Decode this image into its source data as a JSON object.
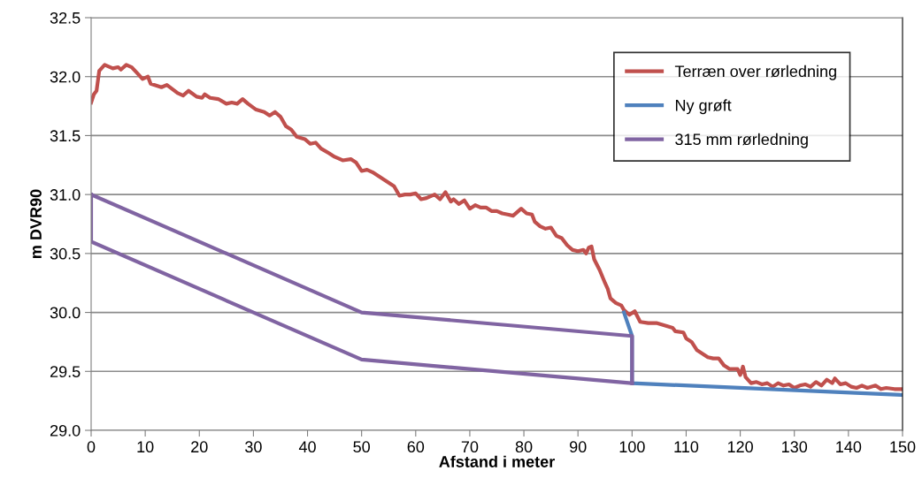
{
  "chart_data": {
    "type": "line",
    "xlabel": "Afstand i meter",
    "ylabel": "m DVR90",
    "xlim": [
      0,
      150
    ],
    "xticks": [
      0,
      10,
      20,
      30,
      40,
      50,
      60,
      70,
      80,
      90,
      100,
      110,
      120,
      130,
      140,
      150
    ],
    "ylim": [
      29.0,
      32.5
    ],
    "yticks": [
      {
        "value": 29.0,
        "label": "29.0"
      },
      {
        "value": 29.5,
        "label": "29.5"
      },
      {
        "value": 30.0,
        "label": "30.0"
      },
      {
        "value": 30.5,
        "label": "30.5"
      },
      {
        "value": 31.0,
        "label": "31.0"
      },
      {
        "value": 31.5,
        "label": "31.5"
      },
      {
        "value": 32.0,
        "label": "32.0"
      },
      {
        "value": 32.5,
        "label": "32.5"
      }
    ],
    "grid": "y",
    "legend": "top right",
    "marker": "none",
    "line_style": "solid",
    "series": [
      {
        "name": "Terræn over rørledning",
        "color": "#c0504d",
        "x": [
          0,
          0.5,
          1,
          1.5,
          2.5,
          4,
          5,
          5.5,
          6.5,
          7.5,
          8.5,
          9.5,
          10.5,
          11,
          13,
          14,
          16,
          17,
          18,
          19.5,
          20.5,
          21,
          22,
          23.5,
          25,
          26,
          27,
          28,
          29,
          30.5,
          32,
          33,
          34,
          35,
          36,
          37,
          38,
          39.5,
          40.5,
          41.5,
          42.5,
          44,
          45,
          46.5,
          48,
          49,
          50,
          51,
          52,
          53,
          54,
          55,
          56,
          57,
          58,
          59,
          60,
          61,
          62,
          63.5,
          64.5,
          65.5,
          66.5,
          67,
          68,
          69,
          70,
          71,
          72,
          73,
          74,
          75,
          76,
          77,
          78,
          79.5,
          80.5,
          81.5,
          82,
          83,
          84,
          85,
          86,
          87,
          88,
          89,
          90,
          91,
          91.5,
          92,
          92.5,
          93,
          94,
          95,
          95.5,
          96,
          97,
          98,
          98.5,
          99.5,
          100.5,
          101.5,
          103,
          104.5,
          106,
          107.5,
          108,
          109.5,
          110,
          111,
          112,
          113,
          114,
          115,
          116,
          117,
          118,
          119.5,
          120,
          120.5,
          121,
          122,
          123,
          124,
          125,
          126,
          127,
          128,
          129,
          130,
          131,
          132,
          133,
          134,
          135,
          136,
          137,
          137.5,
          138.5,
          139.5,
          140.5,
          141.5,
          142.5,
          143.5,
          145,
          146,
          147,
          148.5,
          150
        ],
        "values": [
          31.78,
          31.85,
          31.88,
          32.05,
          32.1,
          32.07,
          32.08,
          32.06,
          32.1,
          32.08,
          32.03,
          31.98,
          32.0,
          31.94,
          31.91,
          31.93,
          31.86,
          31.84,
          31.88,
          31.83,
          31.82,
          31.85,
          31.82,
          31.81,
          31.77,
          31.78,
          31.77,
          31.81,
          31.77,
          31.72,
          31.7,
          31.67,
          31.7,
          31.66,
          31.58,
          31.55,
          31.49,
          31.47,
          31.43,
          31.44,
          31.39,
          31.35,
          31.32,
          31.29,
          31.3,
          31.27,
          31.2,
          31.21,
          31.19,
          31.16,
          31.13,
          31.1,
          31.07,
          30.99,
          31.0,
          31.0,
          31.01,
          30.96,
          30.97,
          31.0,
          30.96,
          31.02,
          30.94,
          30.96,
          30.92,
          30.95,
          30.88,
          30.91,
          30.89,
          30.89,
          30.86,
          30.86,
          30.84,
          30.83,
          30.82,
          30.88,
          30.84,
          30.83,
          30.77,
          30.73,
          30.71,
          30.72,
          30.65,
          30.63,
          30.57,
          30.53,
          30.52,
          30.53,
          30.5,
          30.55,
          30.56,
          30.45,
          30.36,
          30.25,
          30.2,
          30.12,
          30.08,
          30.06,
          30.02,
          29.98,
          30.01,
          29.92,
          29.91,
          29.91,
          29.89,
          29.87,
          29.84,
          29.83,
          29.78,
          29.75,
          29.68,
          29.65,
          29.62,
          29.61,
          29.61,
          29.55,
          29.52,
          29.52,
          29.47,
          29.54,
          29.45,
          29.4,
          29.41,
          29.39,
          29.4,
          29.37,
          29.4,
          29.38,
          29.39,
          29.36,
          29.38,
          29.39,
          29.37,
          29.41,
          29.38,
          29.43,
          29.4,
          29.44,
          29.39,
          29.4,
          29.37,
          29.36,
          29.38,
          29.36,
          29.38,
          29.35,
          29.36,
          29.35,
          29.35
        ]
      },
      {
        "name": "Ny grøft",
        "color": "#4f81bd",
        "x": [
          98.5,
          100,
          100,
          150
        ],
        "values": [
          30.0,
          29.8,
          29.4,
          29.3
        ]
      },
      {
        "name": "315 mm rørledning",
        "color": "#8064a2",
        "x": [
          0,
          50,
          100,
          100
        ],
        "values": [
          31.0,
          30.0,
          29.8,
          29.4
        ]
      },
      {
        "color": "#8064a2",
        "x": [
          0,
          0,
          50,
          100
        ],
        "values": [
          31.0,
          30.6,
          29.6,
          29.4
        ]
      }
    ]
  }
}
